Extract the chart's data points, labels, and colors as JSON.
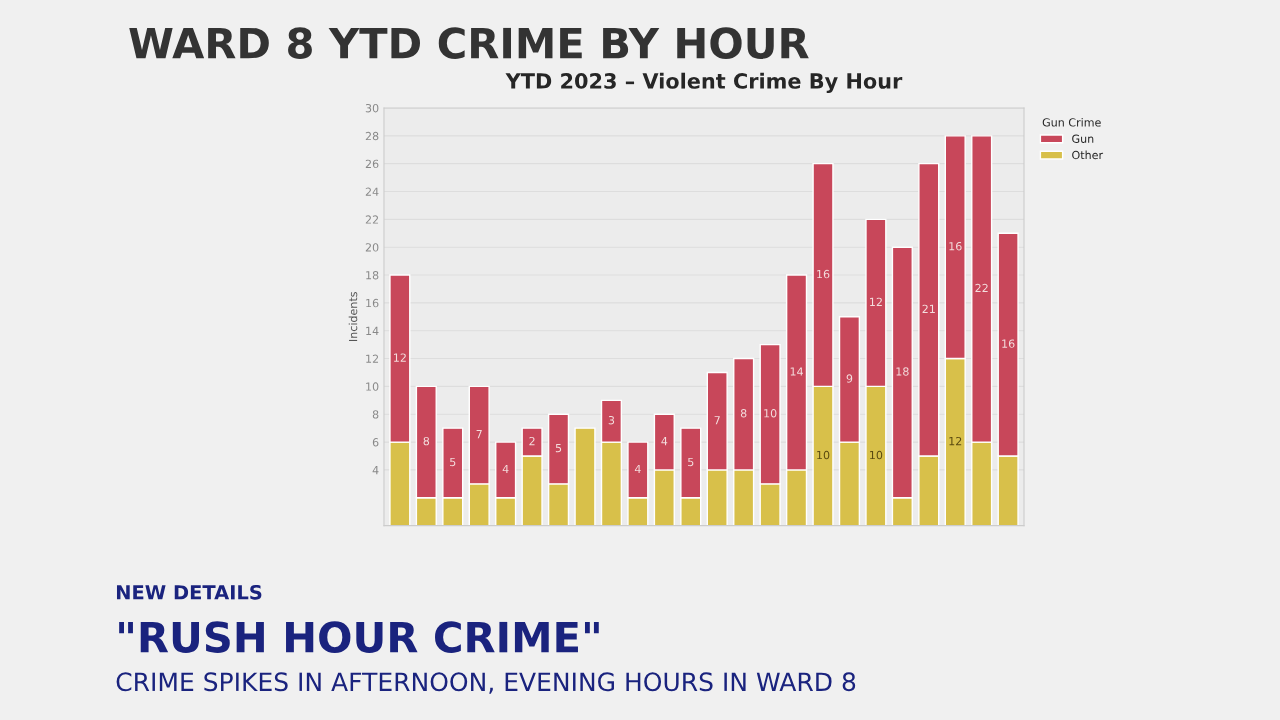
{
  "chart_data": {
    "type": "bar",
    "title": "WARD 8 YTD CRIME BY HOUR",
    "subtitle": "YTD 2023 – Violent Crime By Hour",
    "ylabel": "Incidents",
    "legend_title": "Gun Crime",
    "categories": [
      null,
      null,
      null,
      null,
      null,
      null,
      null,
      null,
      null,
      null,
      null,
      null,
      null,
      null,
      null,
      null,
      null,
      null,
      null,
      null,
      null,
      null,
      null,
      null
    ],
    "stacked": true,
    "series": [
      {
        "name": "Other",
        "color": "#d8c04a",
        "values": [
          6,
          2,
          2,
          3,
          2,
          5,
          3,
          7,
          6,
          2,
          4,
          2,
          4,
          4,
          3,
          4,
          10,
          6,
          10,
          2,
          5,
          12,
          6,
          5
        ],
        "value_labels": [
          null,
          null,
          null,
          null,
          null,
          null,
          null,
          null,
          null,
          null,
          null,
          null,
          null,
          null,
          null,
          null,
          "10",
          null,
          "10",
          null,
          null,
          "12",
          null,
          null
        ]
      },
      {
        "name": "Gun",
        "color": "#c8475a",
        "values": [
          12,
          8,
          5,
          7,
          4,
          2,
          5,
          null,
          3,
          4,
          4,
          5,
          7,
          8,
          10,
          14,
          16,
          9,
          12,
          18,
          21,
          16,
          22,
          16
        ],
        "value_labels": [
          "12",
          "8",
          "5",
          "7",
          "4",
          "2",
          "5",
          null,
          "3",
          "4",
          "4",
          "5",
          "7",
          "8",
          "10",
          "14",
          "16",
          "9",
          "12",
          "18",
          "21",
          "16",
          "22",
          "16"
        ]
      }
    ],
    "ylim": [
      0,
      30
    ],
    "yticks": [
      4,
      6,
      8,
      10,
      12,
      14,
      16,
      18,
      20,
      22,
      24,
      26,
      28,
      30
    ],
    "grid": "y",
    "legend": "top right",
    "tick_labels": "y",
    "annotations": [
      "NEW DETAILS",
      "\"RUSH HOUR CRIME\"",
      "CRIME SPIKES IN AFTERNOON, EVENING HOURS IN WARD 8"
    ]
  }
}
